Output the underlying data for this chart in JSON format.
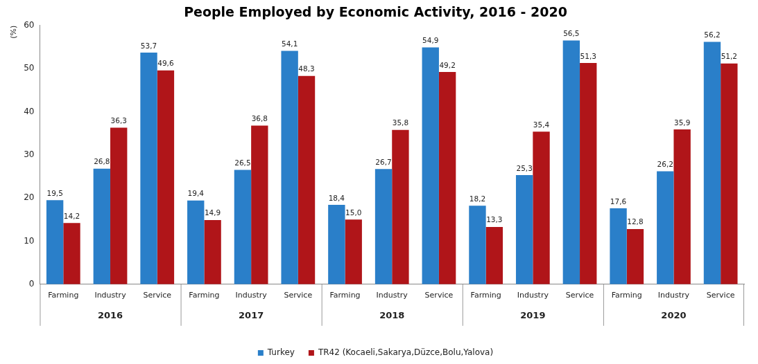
{
  "chart_data": {
    "type": "bar",
    "title": "People Employed by Economic Activity, 2016 - 2020",
    "ylabel": "(%)",
    "categories": [
      "Farming",
      "Industry",
      "Service",
      "Farming",
      "Industry",
      "Service",
      "Farming",
      "Industry",
      "Service",
      "Farming",
      "Industry",
      "Service",
      "Farming",
      "Industry",
      "Service"
    ],
    "annotations": [
      "2016",
      "2017",
      "2018",
      "2019",
      "2020"
    ],
    "series": [
      {
        "name": "Turkey",
        "color": "#2a7fc9",
        "values": [
          19.5,
          26.8,
          53.7,
          19.4,
          26.5,
          54.1,
          18.4,
          26.7,
          54.9,
          18.2,
          25.3,
          56.5,
          17.6,
          26.2,
          56.2
        ],
        "value_labels": [
          "19,5",
          "26,8",
          "53,7",
          "19,4",
          "26,5",
          "54,1",
          "18,4",
          "26,7",
          "54,9",
          "18,2",
          "25,3",
          "56,5",
          "17,6",
          "26,2",
          "56,2"
        ]
      },
      {
        "name": "TR42 (Kocaeli,Sakarya,Düzce,Bolu,Yalova)",
        "color": "#b01519",
        "values": [
          14.2,
          36.3,
          49.6,
          14.9,
          36.8,
          48.3,
          15.0,
          35.8,
          49.2,
          13.3,
          35.4,
          51.3,
          12.8,
          35.9,
          51.2
        ],
        "value_labels": [
          "14,2",
          "36,3",
          "49,6",
          "14,9",
          "36,8",
          "48,3",
          "15,0",
          "35,8",
          "49,2",
          "13,3",
          "35,4",
          "51,3",
          "12,8",
          "35,9",
          "51,2"
        ]
      }
    ],
    "ylim": [
      0,
      60
    ],
    "yticks": [
      0,
      10,
      20,
      30,
      40,
      50,
      60
    ],
    "grid": false,
    "legend": "bottom"
  }
}
